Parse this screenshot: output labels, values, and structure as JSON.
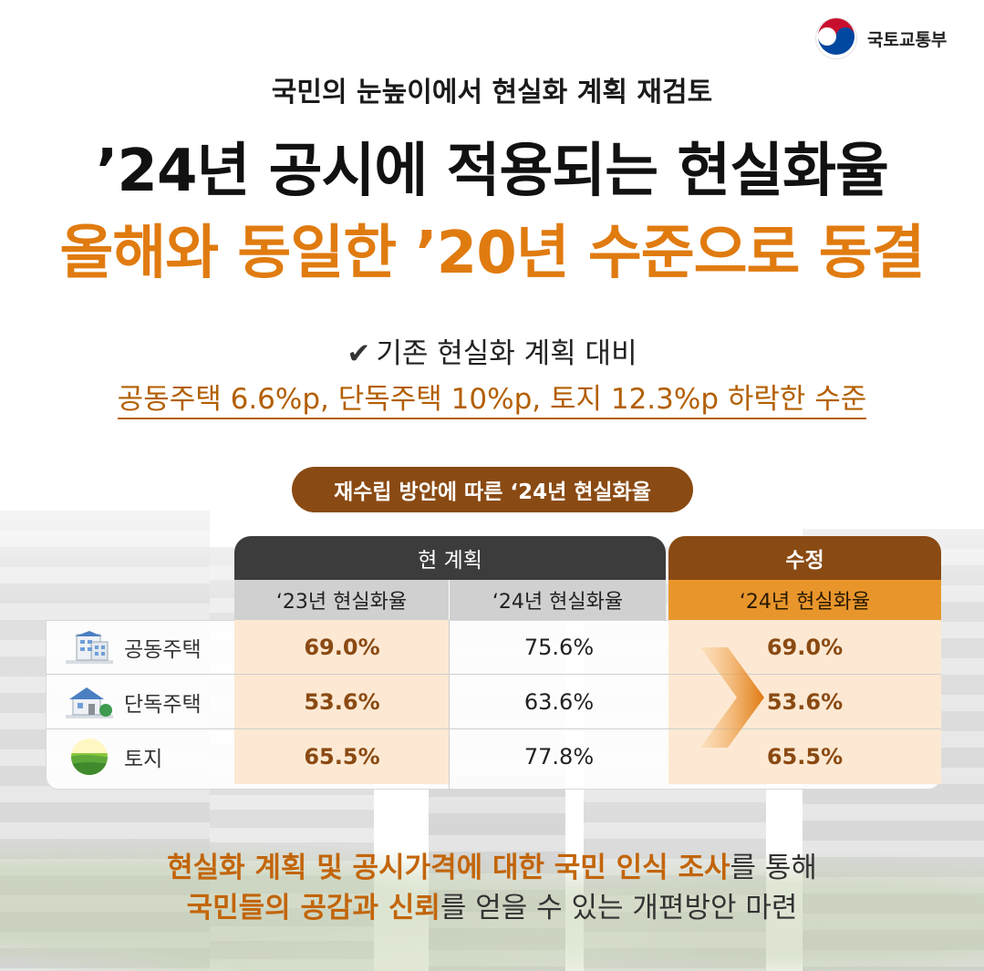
{
  "logo": {
    "ministry": "국토교통부",
    "icon": "taegeuk-emblem-icon",
    "colors": [
      "#c8102e",
      "#0047a0"
    ]
  },
  "subtitle": "국민의 눈높이에서 현실화 계획 재검토",
  "title_line1": "’24년 공시에 적용되는 현실화율",
  "title_line2": "올해와 동일한 ’20년 수준으로 동결",
  "check_text": "기존 현실화 계획 대비",
  "compare_text": "공동주택 6.6%p, 단독주택 10%p, 토지 12.3%p 하락한 수준",
  "pill": "재수립 방안에 따른 ‘24년 현실화율",
  "table": {
    "group_current": "현 계획",
    "group_revised": "수정",
    "col1": "‘23년 현실화율",
    "col2": "‘24년 현실화율",
    "col3": "‘24년 현실화율",
    "rows": [
      {
        "label": "공동주택",
        "icon": "apartment-icon",
        "c1": "69.0%",
        "c2": "75.6%",
        "c3": "69.0%"
      },
      {
        "label": "단독주택",
        "icon": "house-icon",
        "c1": "53.6%",
        "c2": "63.6%",
        "c3": "53.6%"
      },
      {
        "label": "토지",
        "icon": "land-icon",
        "c1": "65.5%",
        "c2": "77.8%",
        "c3": "65.5%"
      }
    ]
  },
  "footer": {
    "l1_strong": "현실화 계획 및 공시가격에 대한 국민 인식 조사",
    "l1_rest": "를 통해",
    "l2_strong": "국민들의 공감과 신뢰",
    "l2_rest": "를 얻을 수 있는 개편방안 마련"
  },
  "colors": {
    "accent": "#e07b10",
    "brown": "#8a4a13",
    "dark": "#3c3c3c",
    "light_orange": "#fde9d3"
  }
}
